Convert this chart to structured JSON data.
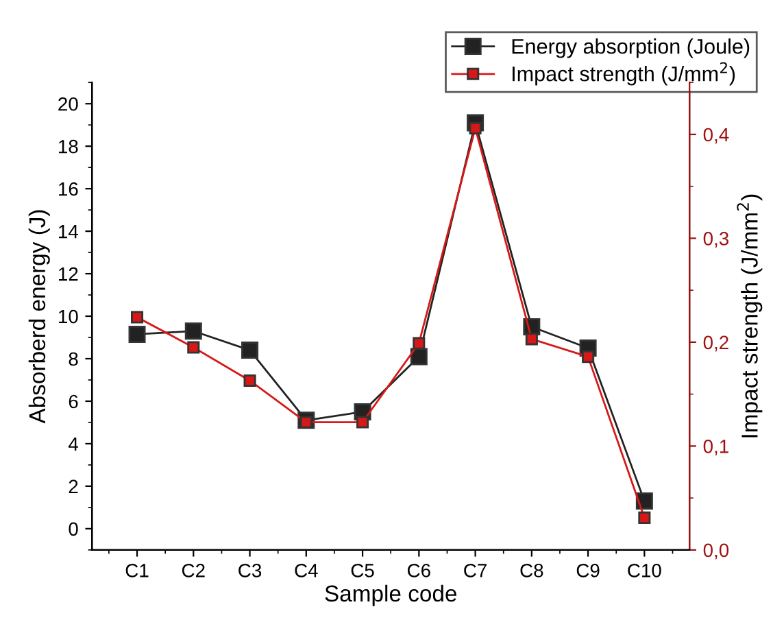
{
  "chart_data": {
    "type": "line",
    "xlabel": "Sample code",
    "ylabel": "Absorberd energy (J)",
    "y2label": "Impact strength (J/mm$^{2}$)",
    "categories": [
      "C1",
      "C2",
      "C3",
      "C4",
      "C5",
      "C6",
      "C7",
      "C8",
      "C9",
      "C10"
    ],
    "series": [
      {
        "name": "Energy absorption (Joule)",
        "color": "#222222",
        "values": [
          9.15,
          9.3,
          8.4,
          5.1,
          5.5,
          8.1,
          19.1,
          9.5,
          8.5,
          1.3
        ]
      },
      {
        "name": "Impact strength (J/mm$^{2}$)",
        "color": "#d81818",
        "axis": "y2",
        "values": [
          0.224,
          0.195,
          0.163,
          0.123,
          0.123,
          0.199,
          0.406,
          0.203,
          0.186,
          0.031
        ]
      }
    ],
    "ylim": [
      -1,
      21
    ],
    "yticks": [
      0,
      2,
      4,
      6,
      8,
      10,
      12,
      14,
      16,
      18,
      20
    ],
    "y2lim": [
      0,
      0.45
    ],
    "y2ticks": [
      {
        "value": 0,
        "label": "0,0"
      },
      {
        "value": 0.1,
        "label": "0,1"
      },
      {
        "value": 0.2,
        "label": "0,2"
      },
      {
        "value": 0.3,
        "label": "0,3"
      },
      {
        "value": 0.4,
        "label": "0,4"
      }
    ],
    "marker": "square",
    "line_style": "solid",
    "legend": "top right",
    "grid": false
  }
}
